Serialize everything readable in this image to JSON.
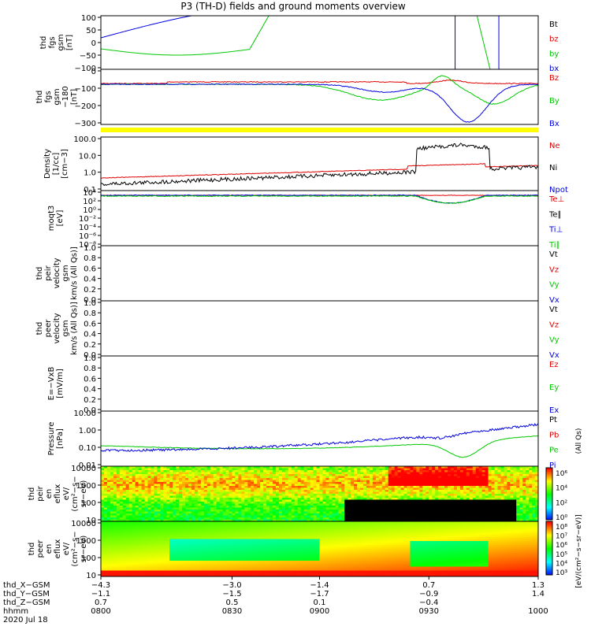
{
  "title": "P3 (TH-D) fields and ground moments overview",
  "colors": {
    "black": "#000000",
    "red": "#e00000",
    "green": "#00c800",
    "blue": "#0000e0",
    "yellow": "#ffff00"
  },
  "chart_data": [
    {
      "type": "line",
      "id": "fgs",
      "ylabel": [
        "thd",
        "fgs",
        "gsm",
        "[nT]"
      ],
      "yticks": [
        "100",
        "50",
        "0",
        "−50",
        "−100"
      ],
      "ylim": [
        -100,
        100
      ],
      "legend": [
        {
          "name": "Bt",
          "color": "black"
        },
        {
          "name": "bz",
          "color": "red"
        },
        {
          "name": "by",
          "color": "green"
        },
        {
          "name": "bx",
          "color": "blue"
        }
      ]
    },
    {
      "type": "line",
      "id": "fgs2",
      "ylabel": [
        "thd",
        "fgs",
        "gsm",
        "−180",
        "[nT]"
      ],
      "yticks": [
        "0",
        "−100",
        "−200",
        "−300"
      ],
      "ylim": [
        -320,
        40
      ],
      "legend": [
        {
          "name": "Bz",
          "color": "red"
        },
        {
          "name": "By",
          "color": "green"
        },
        {
          "name": "Bx",
          "color": "blue"
        }
      ]
    },
    {
      "type": "line",
      "id": "density",
      "scale": "log",
      "ylabel": [
        "Density",
        "[1/cc]",
        "[cm−3]"
      ],
      "yticks": [
        "100.0",
        "10.0",
        "1.0",
        "0.1"
      ],
      "ylim": [
        0.03,
        200
      ],
      "legend": [
        {
          "name": "Ne",
          "color": "red"
        },
        {
          "name": "Ni",
          "color": "black"
        },
        {
          "name": "Npot",
          "color": "blue"
        }
      ]
    },
    {
      "type": "line",
      "id": "temp",
      "scale": "log",
      "ylabel": [
        "moqt3",
        "[eV]"
      ],
      "yticks": [
        "10⁴",
        "10²",
        "10⁰",
        "10⁻²",
        "10⁻⁴",
        "10⁻⁶",
        "10⁻⁸"
      ],
      "legend": [
        {
          "name": "Te⊥",
          "color": "red"
        },
        {
          "name": "Te∥",
          "color": "black"
        },
        {
          "name": "Ti⊥",
          "color": "blue"
        },
        {
          "name": "Ti∥",
          "color": "green"
        }
      ]
    },
    {
      "type": "line",
      "id": "ivel",
      "ylabel": [
        "thd",
        "peir",
        "velocity",
        "gsm",
        "km/s (All Qs)]"
      ],
      "yticks": [
        "1.0",
        "0.8",
        "0.6",
        "0.4",
        "0.2",
        "0.0"
      ],
      "ylim": [
        0,
        1
      ],
      "legend": [
        {
          "name": "Vt",
          "color": "black"
        },
        {
          "name": "Vz",
          "color": "red"
        },
        {
          "name": "Vy",
          "color": "green"
        },
        {
          "name": "Vx",
          "color": "blue"
        }
      ]
    },
    {
      "type": "line",
      "id": "evel",
      "ylabel": [
        "thd",
        "peer",
        "velocity",
        "gsm",
        "km/s (All Qs)]"
      ],
      "yticks": [
        "1.0",
        "0.8",
        "0.6",
        "0.4",
        "0.2",
        "0.0"
      ],
      "ylim": [
        0,
        1
      ],
      "legend": [
        {
          "name": "Vt",
          "color": "black"
        },
        {
          "name": "Vz",
          "color": "red"
        },
        {
          "name": "Vy",
          "color": "green"
        },
        {
          "name": "Vx",
          "color": "blue"
        }
      ]
    },
    {
      "type": "line",
      "id": "efield",
      "ylabel": [
        "E=−VxB",
        "[mV/m]"
      ],
      "yticks": [
        "1.0",
        "0.8",
        "0.6",
        "0.4",
        "0.2",
        "0.0"
      ],
      "ylim": [
        0,
        1
      ],
      "legend": [
        {
          "name": "Ez",
          "color": "red"
        },
        {
          "name": "Ey",
          "color": "green"
        },
        {
          "name": "Ex",
          "color": "blue"
        }
      ]
    },
    {
      "type": "line",
      "id": "pressure",
      "scale": "log",
      "ylabel": [
        "Pressure",
        "[nPa]"
      ],
      "yticks": [
        "10.00",
        "1.00",
        "0.10",
        "0.01"
      ],
      "ylim": [
        0.004,
        30
      ],
      "legend": [
        {
          "name": "Pt",
          "color": "black"
        },
        {
          "name": "Pb",
          "color": "red"
        },
        {
          "name": "Pe",
          "color": "green"
        },
        {
          "name": "Pi",
          "color": "blue"
        }
      ]
    },
    {
      "type": "heatmap",
      "id": "ispec",
      "ylabel": [
        "thd",
        "peir",
        "en",
        "eflux",
        "eV/",
        "(cm²−s−",
        "sr−eV)"
      ],
      "yticks": [
        "10000",
        "1000",
        "100",
        "10"
      ]
    },
    {
      "type": "heatmap",
      "id": "espec",
      "ylabel": [
        "thd",
        "peer",
        "en",
        "eflux",
        "eV/",
        "(cm²−s−",
        "sr−eV)"
      ],
      "yticks": [
        "10000",
        "1000",
        "100",
        "10"
      ]
    }
  ],
  "colorbar": {
    "ticks_top": [
      "10⁶",
      "10⁴",
      "10²",
      "10⁰"
    ],
    "ticks_bottom": [
      "10⁸",
      "10⁷",
      "10⁶",
      "10⁵",
      "10⁴",
      "10³"
    ],
    "label_top": "[eV/(cm²−s−sr−eV)]",
    "label_bottom": "[eV/(cm²−s−sr−eV)] (All Qs)"
  },
  "side_label": "(All Qs)",
  "xaxis": {
    "rows": [
      {
        "name": "thd_X−GSM",
        "values": [
          "−4.3",
          "−3.0",
          "−1.4",
          "0.7",
          "1.3"
        ]
      },
      {
        "name": "thd_Y−GSM",
        "values": [
          "−1.1",
          "−1.5",
          "−1.7",
          "−0.9",
          "1.4"
        ]
      },
      {
        "name": "thd_Z−GSM",
        "values": [
          "0.7",
          "0.5",
          "0.1",
          "−0.4",
          ""
        ]
      },
      {
        "name": "hhmm",
        "values": [
          "0800",
          "0830",
          "0900",
          "0930",
          "1000"
        ]
      }
    ],
    "tick_x_extra": "0.6",
    "date": "2020 Jul 18"
  }
}
